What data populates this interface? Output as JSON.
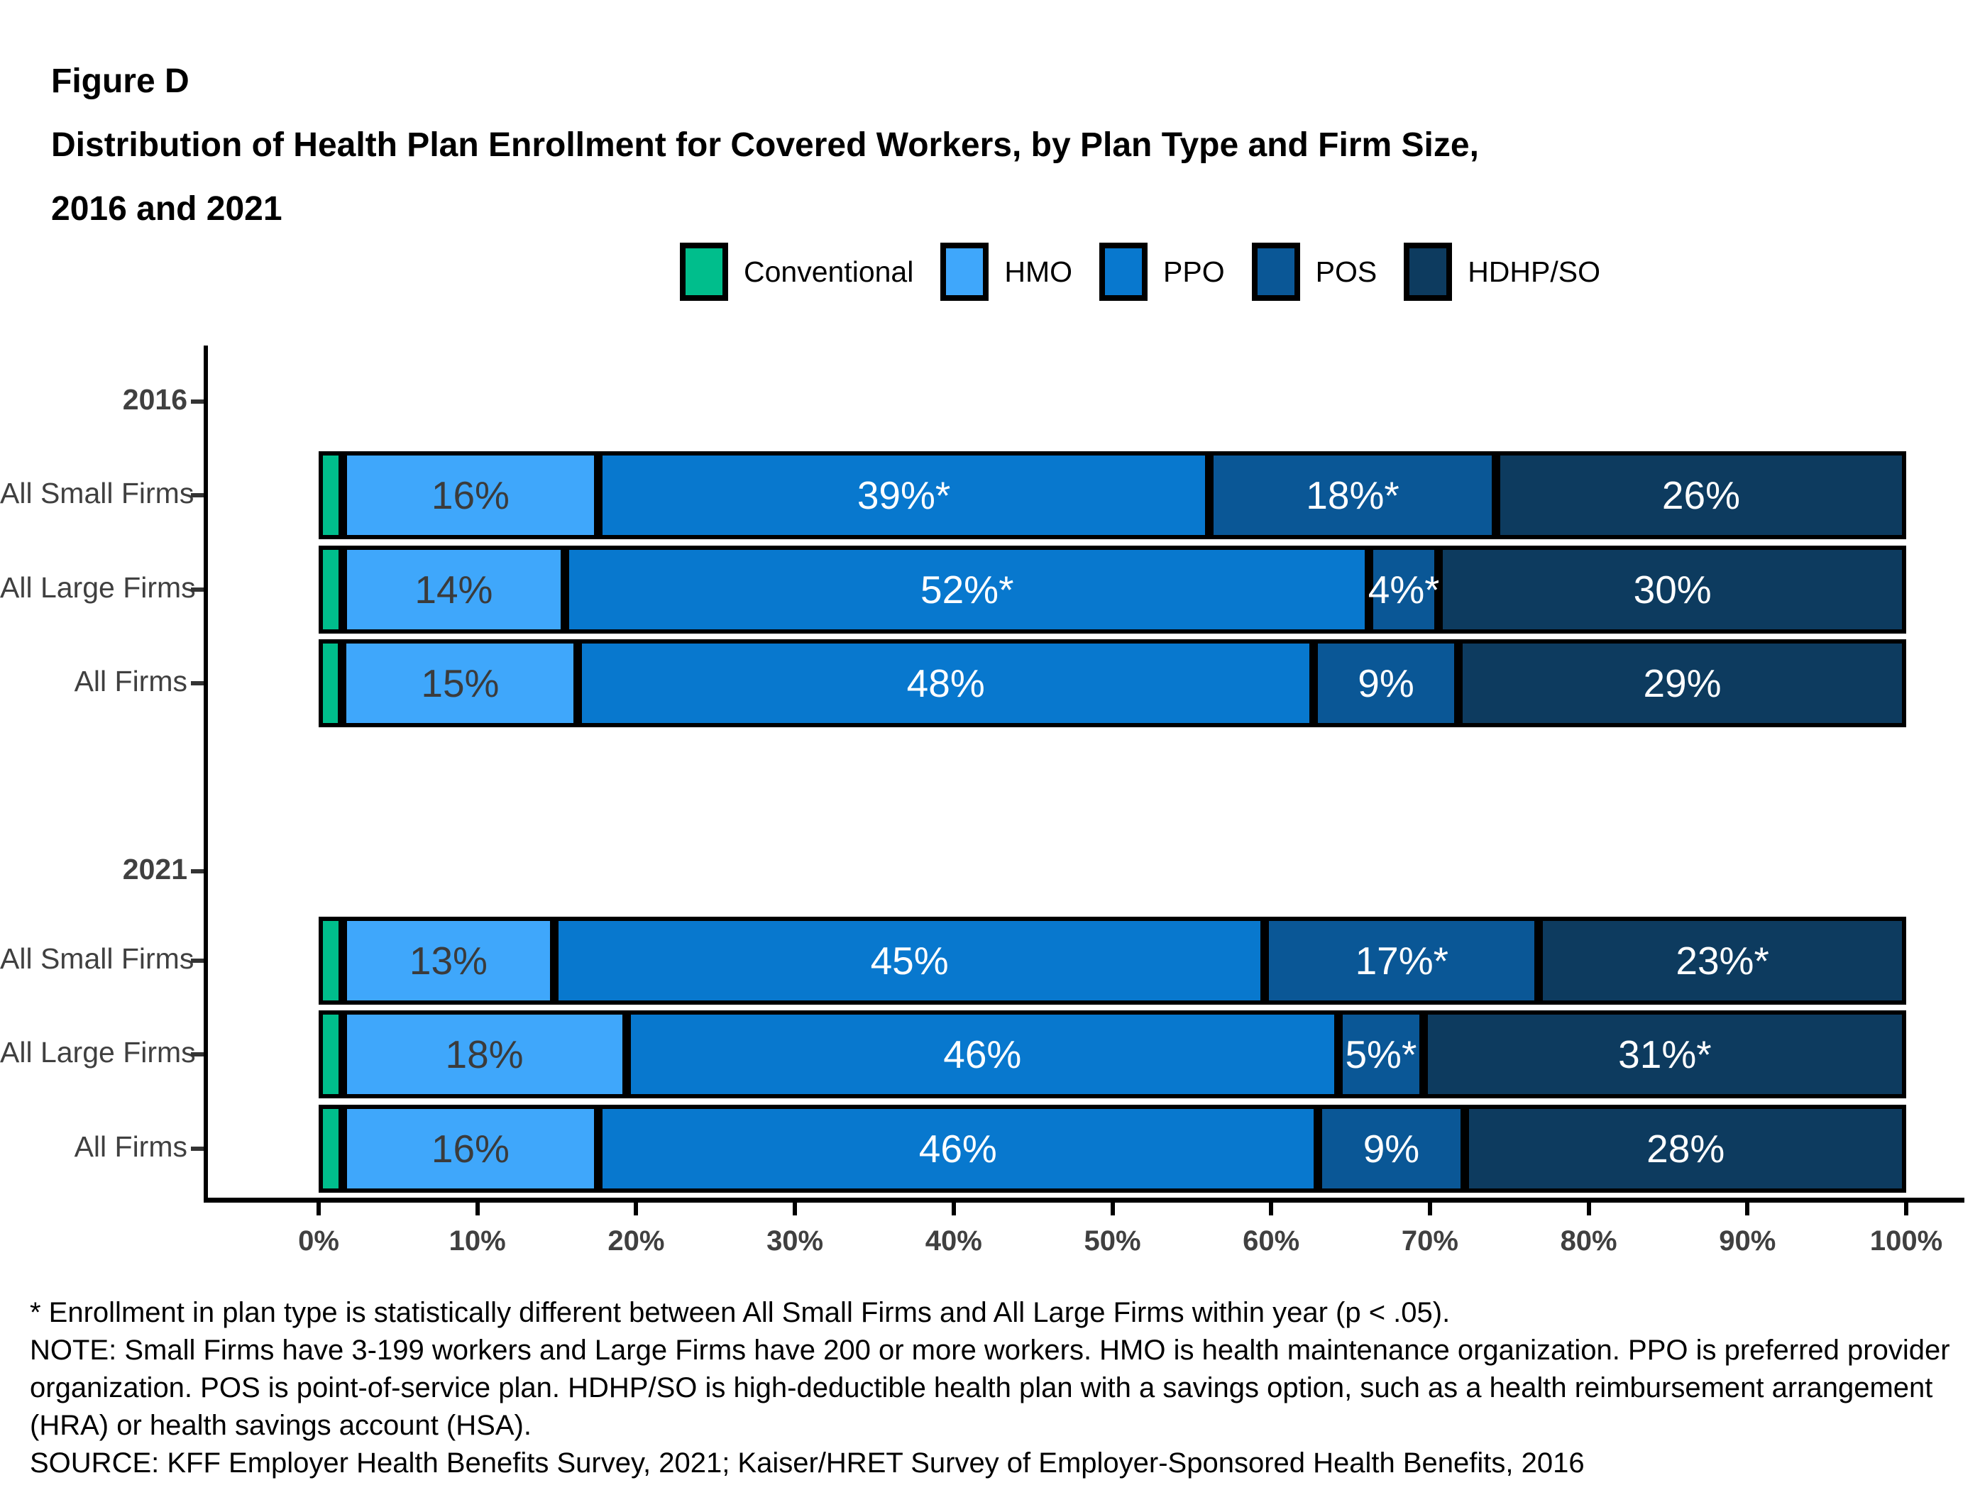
{
  "title": {
    "figure_label": "Figure D",
    "line1": "Distribution of Health Plan Enrollment for Covered Workers, by Plan Type and Firm Size,",
    "line2": "2016 and 2021"
  },
  "legend": {
    "items": [
      {
        "label": "Conventional",
        "color": "#00BE8C"
      },
      {
        "label": "HMO",
        "color": "#3FA7FB"
      },
      {
        "label": "PPO",
        "color": "#0878CE"
      },
      {
        "label": "POS",
        "color": "#0A5796"
      },
      {
        "label": "HDHP/SO",
        "color": "#0D3B5F"
      }
    ]
  },
  "chart_data": {
    "type": "bar",
    "orientation": "horizontal",
    "stacked": true,
    "title": "Distribution of Health Plan Enrollment for Covered Workers, by Plan Type and Firm Size, 2016 and 2021",
    "series_names": [
      "Conventional",
      "HMO",
      "PPO",
      "POS",
      "HDHP/SO"
    ],
    "series_colors": [
      "#00BE8C",
      "#3FA7FB",
      "#0878CE",
      "#0A5796",
      "#0D3B5F"
    ],
    "value_label_colors": [
      "#ffffff",
      "#3B3B3B",
      "#ffffff",
      "#ffffff",
      "#ffffff"
    ],
    "xlim": [
      0,
      100
    ],
    "xticks": [
      "0%",
      "10%",
      "20%",
      "30%",
      "40%",
      "50%",
      "60%",
      "70%",
      "80%",
      "90%",
      "100%"
    ],
    "grid": false,
    "legend_position": "top",
    "groups": [
      {
        "year": "2016",
        "rows": [
          {
            "label": "All Small Firms",
            "values": [
              1,
              16,
              39,
              18,
              26
            ],
            "value_labels": [
              "",
              "16%",
              "39%*",
              "18%*",
              "26%"
            ]
          },
          {
            "label": "All Large Firms",
            "values": [
              1,
              14,
              52,
              4,
              30
            ],
            "value_labels": [
              "",
              "14%",
              "52%*",
              "4%*",
              "30%"
            ]
          },
          {
            "label": "All Firms",
            "values": [
              1,
              15,
              48,
              9,
              29
            ],
            "value_labels": [
              "",
              "15%",
              "48%",
              "9%",
              "29%"
            ]
          }
        ]
      },
      {
        "year": "2021",
        "rows": [
          {
            "label": "All Small Firms",
            "values": [
              1,
              13,
              45,
              17,
              23
            ],
            "value_labels": [
              "",
              "13%",
              "45%",
              "17%*",
              "23%*"
            ]
          },
          {
            "label": "All Large Firms",
            "values": [
              1,
              18,
              46,
              5,
              31
            ],
            "value_labels": [
              "",
              "18%",
              "46%",
              "5%*",
              "31%*"
            ]
          },
          {
            "label": "All Firms",
            "values": [
              1,
              16,
              46,
              9,
              28
            ],
            "value_labels": [
              "",
              "16%",
              "46%",
              "9%",
              "28%"
            ]
          }
        ]
      }
    ]
  },
  "footnotes": {
    "line1": "* Enrollment in plan type is statistically different between All Small Firms and All Large Firms within year (p < .05).",
    "line2": "NOTE: Small Firms have 3-199 workers and Large Firms have 200 or more workers. HMO is health maintenance organization. PPO is preferred provider",
    "line3": "organization. POS is point-of-service plan. HDHP/SO is high-deductible health plan with a savings option, such as a health reimbursement arrangement",
    "line4": "(HRA) or health savings account (HSA).",
    "line5": "SOURCE: KFF Employer Health Benefits Survey, 2021; Kaiser/HRET Survey of Employer-Sponsored Health Benefits, 2016"
  }
}
